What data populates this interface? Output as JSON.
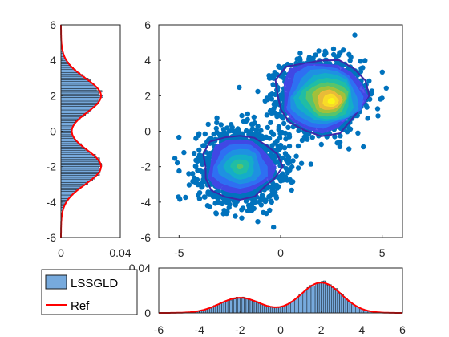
{
  "chart_data": [
    {
      "id": "main",
      "type": "scatter",
      "overlay": "filled-contour",
      "xlim": [
        -6,
        6
      ],
      "ylim": [
        -6,
        6
      ],
      "xticks": [
        "-5",
        "0",
        "5"
      ],
      "yticks": [
        "-6",
        "-4",
        "-2",
        "0",
        "2",
        "4",
        "6"
      ],
      "clusters": [
        {
          "mean": [
            2,
            2
          ],
          "std": 1.0,
          "points": 1500
        },
        {
          "mean": [
            -2,
            -2
          ],
          "std": 1.0,
          "points": 1500
        }
      ],
      "contour_levels": 10,
      "colormap": [
        "#3e26a8",
        "#4744e8",
        "#2c73f3",
        "#1d95df",
        "#13b0c6",
        "#21bfa1",
        "#5dc466",
        "#aac036",
        "#f0ba39",
        "#fadf26",
        "#f9fb15"
      ],
      "scatter_color": "#0072bd"
    },
    {
      "id": "left-marginal",
      "type": "histogram",
      "orientation": "horizontal",
      "xlim": [
        0,
        0.04
      ],
      "ylim": [
        -6,
        6
      ],
      "xticks": [
        "0",
        "0.04"
      ],
      "yticks": [
        "-6",
        "-4",
        "-2",
        "0",
        "2",
        "4",
        "6"
      ],
      "bin_edges_range": [
        -4.5,
        4.5
      ],
      "bin_width": 0.1,
      "peaks": [
        {
          "at": -2,
          "density": 0.027
        },
        {
          "at": 2,
          "density": 0.027
        }
      ],
      "series": [
        {
          "name": "LSSGLD",
          "kind": "bars",
          "color": "#77aadd"
        },
        {
          "name": "Ref",
          "kind": "line",
          "color": "#ff0000"
        }
      ]
    },
    {
      "id": "bottom-marginal",
      "type": "histogram",
      "orientation": "vertical",
      "xlim": [
        -6,
        6
      ],
      "ylim": [
        0,
        0.04
      ],
      "xticks": [
        "-6",
        "-4",
        "-2",
        "0",
        "2",
        "4",
        "6"
      ],
      "yticks": [
        "0",
        "0.04"
      ],
      "bin_edges_range": [
        -4.5,
        4.5
      ],
      "bin_width": 0.1,
      "peaks": [
        {
          "at": -2,
          "density": 0.0135
        },
        {
          "at": 2,
          "density": 0.027
        }
      ],
      "series": [
        {
          "name": "LSSGLD",
          "kind": "bars",
          "color": "#77aadd"
        },
        {
          "name": "Ref",
          "kind": "line",
          "color": "#ff0000"
        }
      ]
    }
  ],
  "legend": {
    "entries": [
      {
        "label": "LSSGLD",
        "swatch": "#77aadd"
      },
      {
        "label": "Ref",
        "swatch": "#ff0000"
      }
    ]
  }
}
